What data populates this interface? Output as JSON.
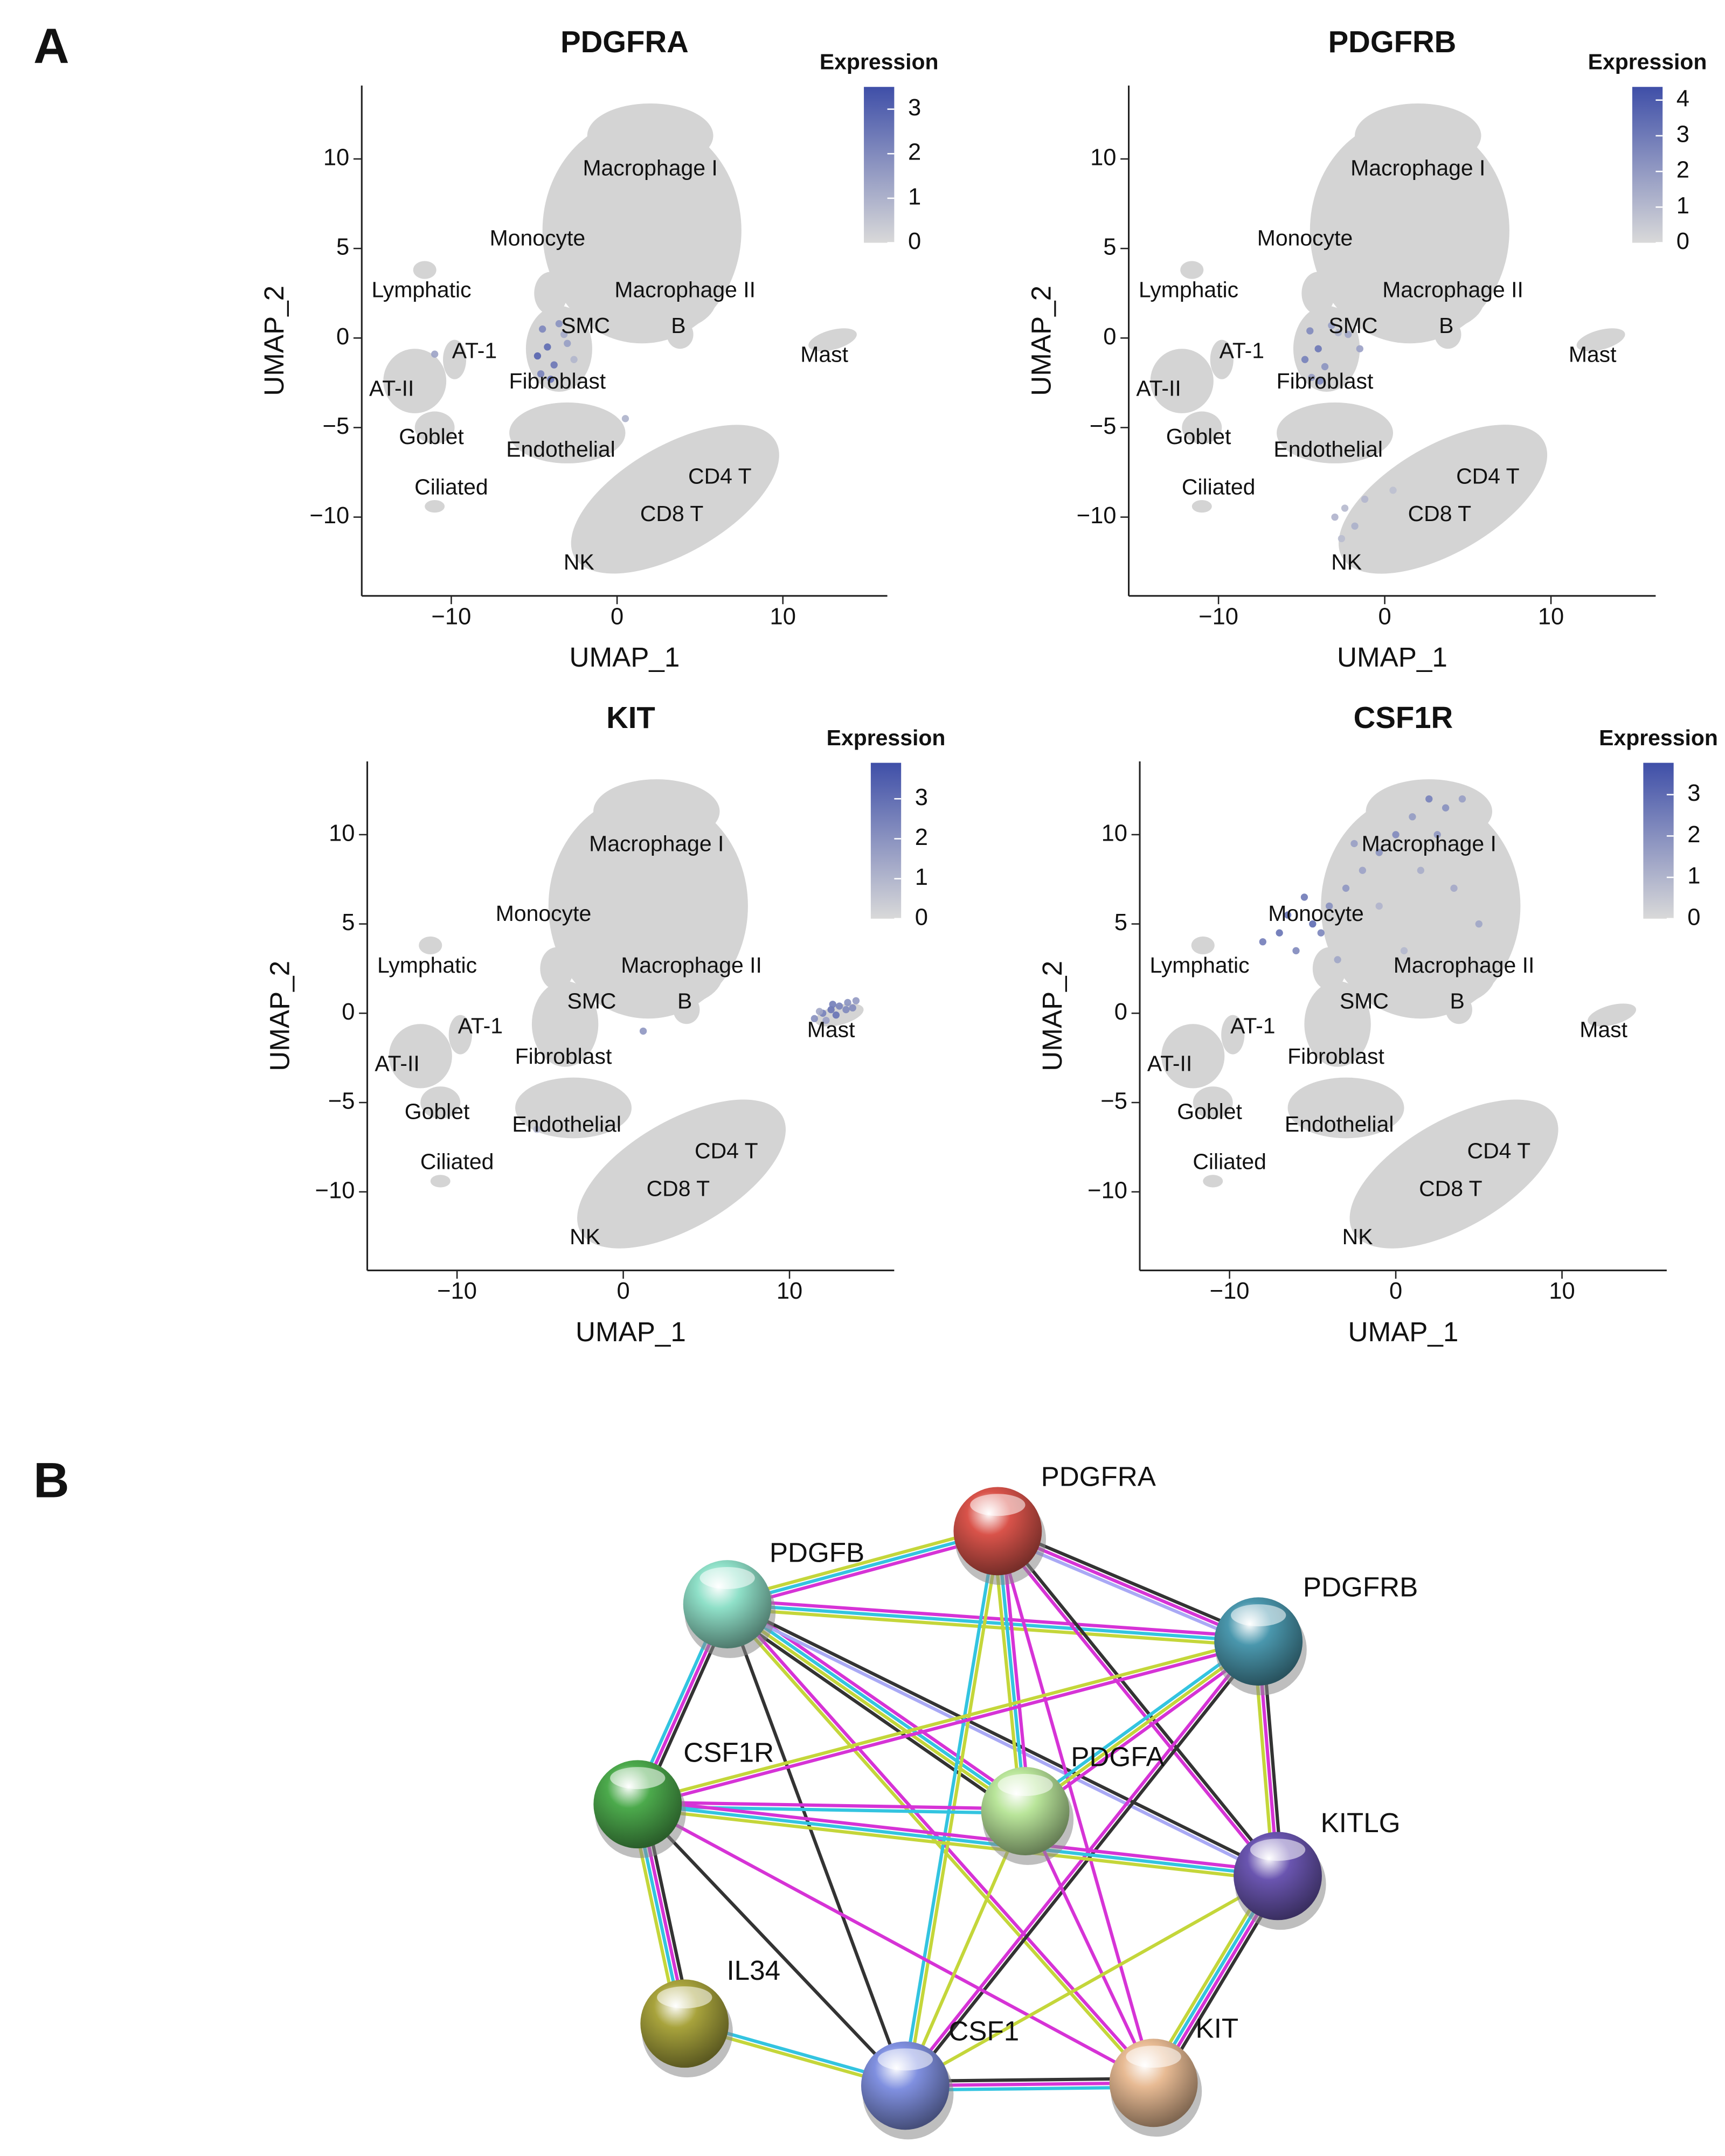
{
  "panel_labels": [
    "A",
    "B"
  ],
  "umap_labels": [
    {
      "text": "Macrophage I",
      "x": 2.0,
      "y": 9.4
    },
    {
      "text": "Monocyte",
      "x": -4.8,
      "y": 5.5
    },
    {
      "text": "Lymphatic",
      "x": -11.8,
      "y": 2.6
    },
    {
      "text": "Macrophage II",
      "x": 4.1,
      "y": 2.6
    },
    {
      "text": "SMC",
      "x": -1.9,
      "y": 0.6
    },
    {
      "text": "B",
      "x": 3.7,
      "y": 0.6
    },
    {
      "text": "AT-1",
      "x": -8.6,
      "y": -0.8
    },
    {
      "text": "Mast",
      "x": 12.5,
      "y": -1.0
    },
    {
      "text": "Fibroblast",
      "x": -3.6,
      "y": -2.5
    },
    {
      "text": "AT-II",
      "x": -13.6,
      "y": -2.9
    },
    {
      "text": "Goblet",
      "x": -11.2,
      "y": -5.6
    },
    {
      "text": "Endothelial",
      "x": -3.4,
      "y": -6.3
    },
    {
      "text": "CD4 T",
      "x": 6.2,
      "y": -7.8
    },
    {
      "text": "Ciliated",
      "x": -10.0,
      "y": -8.4
    },
    {
      "text": "CD8 T",
      "x": 3.3,
      "y": -9.9
    },
    {
      "text": "NK",
      "x": -2.3,
      "y": -12.6
    }
  ],
  "chart_data": [
    {
      "type": "scatter",
      "title": "PDGFRA",
      "x_label": "UMAP_1",
      "y_label": "UMAP_2",
      "xlim": [
        -15.4,
        16.3
      ],
      "ylim": [
        -14.4,
        14.1
      ],
      "xticks": [
        {
          "value": -10,
          "label": "−10"
        },
        0,
        10
      ],
      "yticks": [
        {
          "value": -10,
          "label": "−10"
        },
        {
          "value": -5,
          "label": "−5"
        },
        0,
        5,
        10
      ],
      "x": [
        -4.5,
        -4.2,
        -3.8,
        -3.5,
        -3.2,
        -4.8,
        -4.6,
        -3.0,
        -2.6,
        -4.0,
        -11.0,
        0.5
      ],
      "y": [
        0.5,
        -0.5,
        -1.5,
        0.8,
        0.2,
        -1.0,
        -2.0,
        -0.3,
        -1.2,
        -2.3,
        -0.9,
        -4.5
      ],
      "values": [
        2.1,
        2.8,
        2.5,
        1.8,
        1.2,
        3.0,
        2.2,
        1.5,
        0.9,
        2.6,
        1.4,
        1.0
      ],
      "colorbar": {
        "title": "Expression",
        "lim": [
          0,
          3.5
        ],
        "ticks": [
          0,
          1,
          2,
          3
        ],
        "colors": [
          "#d9d9d9",
          "#3f4fa8"
        ]
      }
    },
    {
      "type": "scatter",
      "title": "PDGFRB",
      "x_label": "UMAP_1",
      "y_label": "UMAP_2",
      "xlim": [
        -15.4,
        16.3
      ],
      "ylim": [
        -14.4,
        14.1
      ],
      "xticks": [
        {
          "value": -10,
          "label": "−10"
        },
        0,
        10
      ],
      "yticks": [
        {
          "value": -10,
          "label": "−10"
        },
        {
          "value": -5,
          "label": "−5"
        },
        0,
        5,
        10
      ],
      "x": [
        -4.5,
        -4.0,
        -3.6,
        -3.2,
        -2.8,
        -4.8,
        -4.4,
        -3.9,
        -2.2,
        -1.5,
        -2.4,
        -1.8,
        -2.6,
        -1.2,
        0.5,
        -3.0
      ],
      "y": [
        0.4,
        -0.6,
        -1.6,
        0.7,
        0.3,
        -1.2,
        -2.2,
        -2.4,
        0.2,
        -0.6,
        -9.5,
        -10.5,
        -11.2,
        -9.0,
        -8.5,
        -10.0
      ],
      "values": [
        2.5,
        3.1,
        2.2,
        1.9,
        1.3,
        2.8,
        2.0,
        2.6,
        1.6,
        1.8,
        1.0,
        1.3,
        0.9,
        1.1,
        0.8,
        1.2
      ],
      "colorbar": {
        "title": "Expression",
        "lim": [
          0,
          4.37
        ],
        "ticks": [
          0,
          1,
          2,
          3,
          4
        ],
        "colors": [
          "#d9d9d9",
          "#3f4fa8"
        ]
      }
    },
    {
      "type": "scatter",
      "title": "KIT",
      "x_label": "UMAP_1",
      "y_label": "UMAP_2",
      "xlim": [
        -15.4,
        16.3
      ],
      "ylim": [
        -14.4,
        14.1
      ],
      "xticks": [
        {
          "value": -10,
          "label": "−10"
        },
        0,
        10
      ],
      "yticks": [
        {
          "value": -10,
          "label": "−10"
        },
        {
          "value": -5,
          "label": "−5"
        },
        0,
        5,
        10
      ],
      "x": [
        11.5,
        12,
        12.5,
        13,
        13.5,
        14,
        12.2,
        12.8,
        13.4,
        11.8,
        13.8,
        1.2,
        -5.2,
        12.6
      ],
      "y": [
        -0.3,
        0,
        0.2,
        0.4,
        0.6,
        0.7,
        -0.4,
        -0.1,
        0.2,
        0.1,
        0.3,
        -1.0,
        -6.5,
        0.5
      ],
      "values": [
        2.1,
        2.5,
        2.8,
        2.4,
        2.0,
        1.8,
        1.6,
        2.9,
        2.3,
        1.4,
        2.2,
        1.9,
        1.0,
        2.6
      ],
      "colorbar": {
        "title": "Expression",
        "lim": [
          0,
          3.9
        ],
        "ticks": [
          0,
          1,
          2,
          3
        ],
        "colors": [
          "#d9d9d9",
          "#3f4fa8"
        ]
      }
    },
    {
      "type": "scatter",
      "title": "CSF1R",
      "x_label": "UMAP_1",
      "y_label": "UMAP_2",
      "xlim": [
        -15.4,
        16.3
      ],
      "ylim": [
        -14.4,
        14.1
      ],
      "xticks": [
        {
          "value": -10,
          "label": "−10"
        },
        0,
        10
      ],
      "yticks": [
        {
          "value": -10,
          "label": "−10"
        },
        {
          "value": -5,
          "label": "−5"
        },
        0,
        5,
        10
      ],
      "x": [
        -8,
        -7,
        -6,
        -5,
        -4,
        -3,
        -2,
        -1,
        0,
        1,
        2,
        3,
        4,
        -6.5,
        -5.5,
        -4.5,
        -3.5,
        -2.5,
        1.5,
        3.5,
        -1,
        2.5,
        5,
        0.5
      ],
      "y": [
        4,
        4.5,
        3.5,
        5,
        6,
        7,
        8,
        9,
        10,
        11,
        12,
        11.5,
        12,
        5.5,
        6.5,
        4.5,
        3,
        9.5,
        8,
        7,
        6,
        10,
        5,
        3.5
      ],
      "values": [
        2.5,
        2.8,
        2.2,
        3.0,
        2.0,
        1.8,
        1.5,
        1.9,
        2.2,
        1.7,
        2.4,
        2.0,
        1.6,
        2.9,
        2.6,
        2.3,
        1.4,
        1.6,
        1.2,
        1.3,
        1.0,
        1.8,
        1.4,
        0.9
      ],
      "colorbar": {
        "title": "Expression",
        "lim": [
          0,
          3.77
        ],
        "ticks": [
          0,
          1,
          2,
          3
        ],
        "colors": [
          "#d9d9d9",
          "#3f4fa8"
        ]
      }
    }
  ],
  "network": {
    "nodes": [
      {
        "label": "PDGFRA",
        "color": "#d9534a"
      },
      {
        "label": "PDGFB",
        "color": "#8fe0c8"
      },
      {
        "label": "PDGFRB",
        "color": "#4a97ad"
      },
      {
        "label": "CSF1R",
        "color": "#4caa4c"
      },
      {
        "label": "PDGFA",
        "color": "#b9e59a"
      },
      {
        "label": "KITLG",
        "color": "#6a55b0"
      },
      {
        "label": "IL34",
        "color": "#a8a33c"
      },
      {
        "label": "CSF1",
        "color": "#8090e0"
      },
      {
        "label": "KIT",
        "color": "#e8bb94"
      }
    ]
  }
}
